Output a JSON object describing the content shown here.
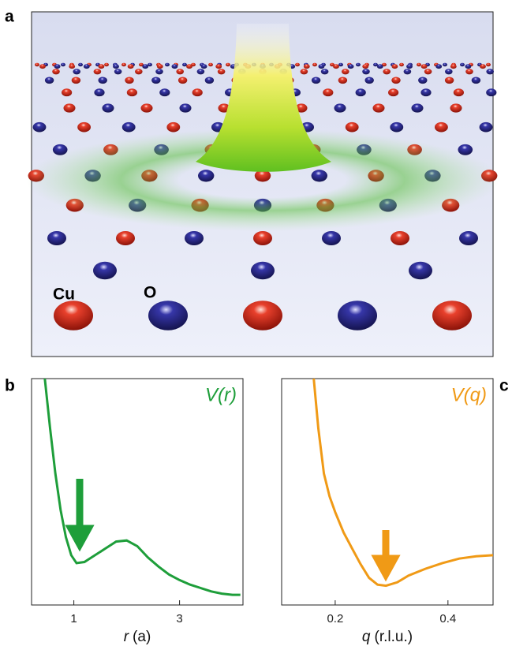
{
  "panel_labels": [
    "a",
    "b",
    "c"
  ],
  "illustration": {
    "labels": [
      "Cu",
      "O"
    ],
    "colors": [
      "#d42a1c",
      "#28278a"
    ]
  },
  "chart_data": [
    {
      "type": "line",
      "title": "V(r)",
      "xlabel": {
        "symbol": "r",
        "unit": "(a)"
      },
      "color": "#1e9e3a",
      "x": [
        0.45,
        0.55,
        0.65,
        0.75,
        0.85,
        0.95,
        1.05,
        1.2,
        1.4,
        1.6,
        1.8,
        2.0,
        2.2,
        2.4,
        2.6,
        2.8,
        3.0,
        3.2,
        3.4,
        3.6,
        3.8,
        4.0,
        4.15
      ],
      "values": [
        100,
        78,
        58,
        42,
        30,
        22,
        18.5,
        19,
        22,
        25,
        28,
        28.5,
        26,
        21,
        17,
        13.5,
        11,
        9,
        7.5,
        6,
        5,
        4.5,
        4.5
      ],
      "xlim": [
        0.2,
        4.2
      ],
      "xticks": [
        1,
        3
      ],
      "ylim": [
        0,
        100
      ]
    },
    {
      "type": "line",
      "title": "V(q)",
      "xlabel": {
        "symbol": "q",
        "unit": "(r.l.u.)"
      },
      "color": "#f09a16",
      "x": [
        0.162,
        0.17,
        0.18,
        0.19,
        0.2,
        0.215,
        0.23,
        0.245,
        0.26,
        0.275,
        0.29,
        0.31,
        0.33,
        0.36,
        0.39,
        0.42,
        0.45,
        0.48
      ],
      "values": [
        100,
        78,
        58,
        48,
        41,
        32,
        25,
        18,
        12,
        9,
        8.5,
        10,
        13,
        16,
        18.5,
        20.5,
        21.5,
        22
      ],
      "xlim": [
        0.105,
        0.48
      ],
      "xticks": [
        0.2,
        0.4
      ],
      "ylim": [
        0,
        100
      ]
    }
  ]
}
